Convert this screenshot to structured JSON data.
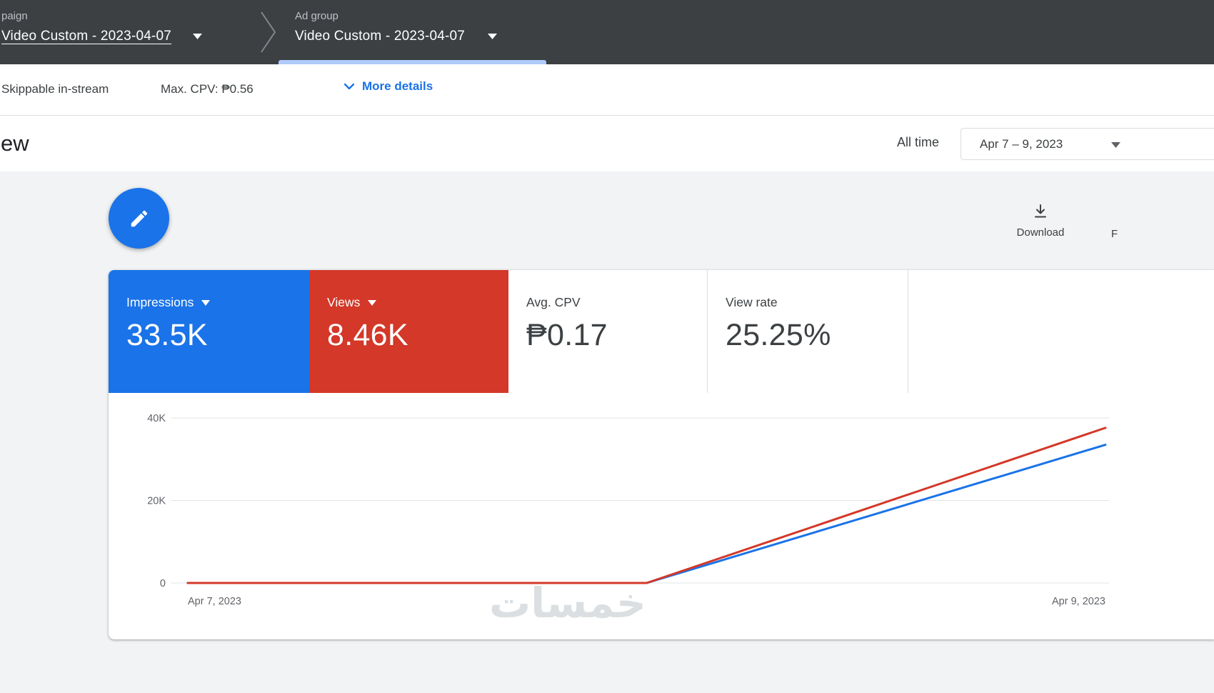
{
  "topbar": {
    "campaign": {
      "label": "paign",
      "value": "Video Custom - 2023-04-07"
    },
    "ad_group": {
      "label": "Ad group",
      "value": "Video Custom - 2023-04-07"
    }
  },
  "subbar": {
    "ad_type": "Skippable in-stream",
    "max_cpv": "Max. CPV: ₱0.56",
    "more_details": "More details"
  },
  "overview": {
    "title": "ew",
    "time_label": "All time",
    "date_range": "Apr 7 – 9, 2023"
  },
  "toolbar": {
    "download_label": "Download",
    "cut_label": "F"
  },
  "metrics": [
    {
      "label": "Impressions",
      "value": "33.5K",
      "bg": "#1a73e8",
      "fg": "#ffffff",
      "has_caret": true
    },
    {
      "label": "Views",
      "value": "8.46K",
      "bg": "#d33828",
      "fg": "#ffffff",
      "has_caret": true
    },
    {
      "label": "Avg. CPV",
      "value": "₱0.17",
      "bg": "#ffffff",
      "fg": "#3c4043",
      "has_caret": false
    },
    {
      "label": "View rate",
      "value": "25.25%",
      "bg": "#ffffff",
      "fg": "#3c4043",
      "has_caret": false
    }
  ],
  "chart_data": {
    "type": "line",
    "x": [
      "Apr 7, 2023",
      "Apr 8, 2023",
      "Apr 9, 2023"
    ],
    "series": [
      {
        "name": "Impressions",
        "color": "#1a73e8",
        "values": [
          0,
          0,
          33500
        ],
        "axis_max": 40000
      },
      {
        "name": "Views",
        "color": "#d33828",
        "values": [
          0,
          0,
          8460
        ],
        "axis_max": 9000
      }
    ],
    "y_ticks": [
      {
        "label": "40K",
        "value": 40000
      },
      {
        "label": "20K",
        "value": 20000
      },
      {
        "label": "0",
        "value": 0
      }
    ],
    "ylim": [
      0,
      40000
    ],
    "x_axis_labels": [
      "Apr 7, 2023",
      "Apr 9, 2023"
    ],
    "grid": true,
    "legend": "none"
  },
  "watermark": "خمسات",
  "colors": {
    "topbar_bg": "#3c4043",
    "accent_blue": "#1a73e8",
    "metric_red": "#d33828",
    "tab_indicator": "#aecbfa",
    "content_bg": "#f1f3f4",
    "border": "#dadce0"
  }
}
